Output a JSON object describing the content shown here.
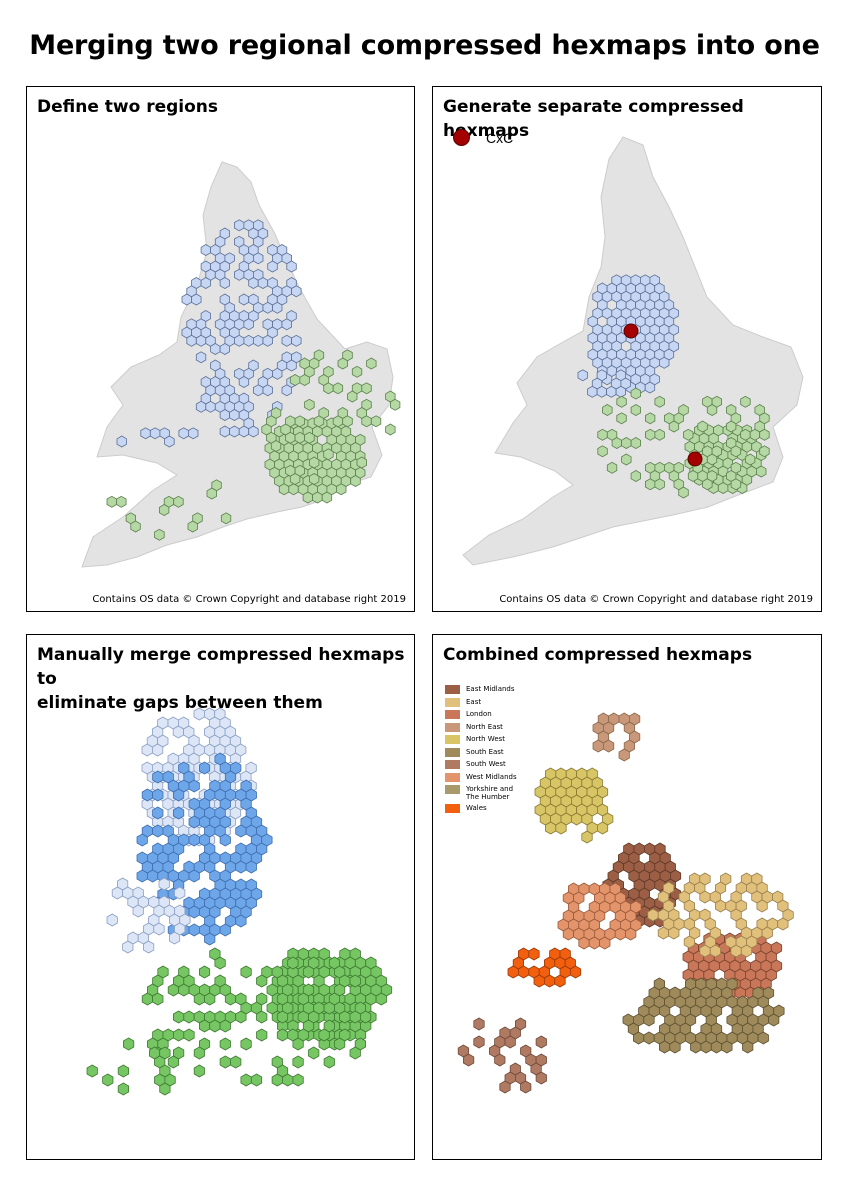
{
  "title": "Merging two regional compressed hexmaps into one",
  "panels": {
    "p1": {
      "title": "Define two regions",
      "copyright": "Contains OS data © Crown Copyright and database right 2019"
    },
    "p2": {
      "title": "Generate separate compressed hexmaps",
      "copyright": "Contains OS data © Crown Copyright and database right 2019",
      "cxc_label": "CxC"
    },
    "p3": {
      "title_line1": "Manually merge compressed hexmaps to",
      "title_line2": "eliminate gaps between them"
    },
    "p4": {
      "title": "Combined compressed hexmaps"
    }
  },
  "legend": [
    {
      "label": "East Midlands",
      "color": "#9c5f46"
    },
    {
      "label": "East",
      "color": "#e0c07a"
    },
    {
      "label": "London",
      "color": "#c97758"
    },
    {
      "label": "North East",
      "color": "#c9977a"
    },
    {
      "label": "North West",
      "color": "#d8c566"
    },
    {
      "label": "South East",
      "color": "#9e8a5a"
    },
    {
      "label": "South West",
      "color": "#b07a62"
    },
    {
      "label": "West Midlands",
      "color": "#e3946b"
    },
    {
      "label": "Yorkshire and The Humber",
      "color": "#a89a6a"
    },
    {
      "label": "Wales",
      "color": "#f25f0e"
    }
  ],
  "colors": {
    "north_fill": "#c7d6f2",
    "north_stroke": "#5a6f96",
    "north_light": "#dde6f6",
    "south_fill": "#b5d8a5",
    "south_stroke": "#5a7f4a",
    "blue_dark": "#6ea6ea",
    "green_dark": "#76c663",
    "land": "#e3e3e3",
    "land_border": "#cccccc",
    "cxc": "#a50000"
  }
}
